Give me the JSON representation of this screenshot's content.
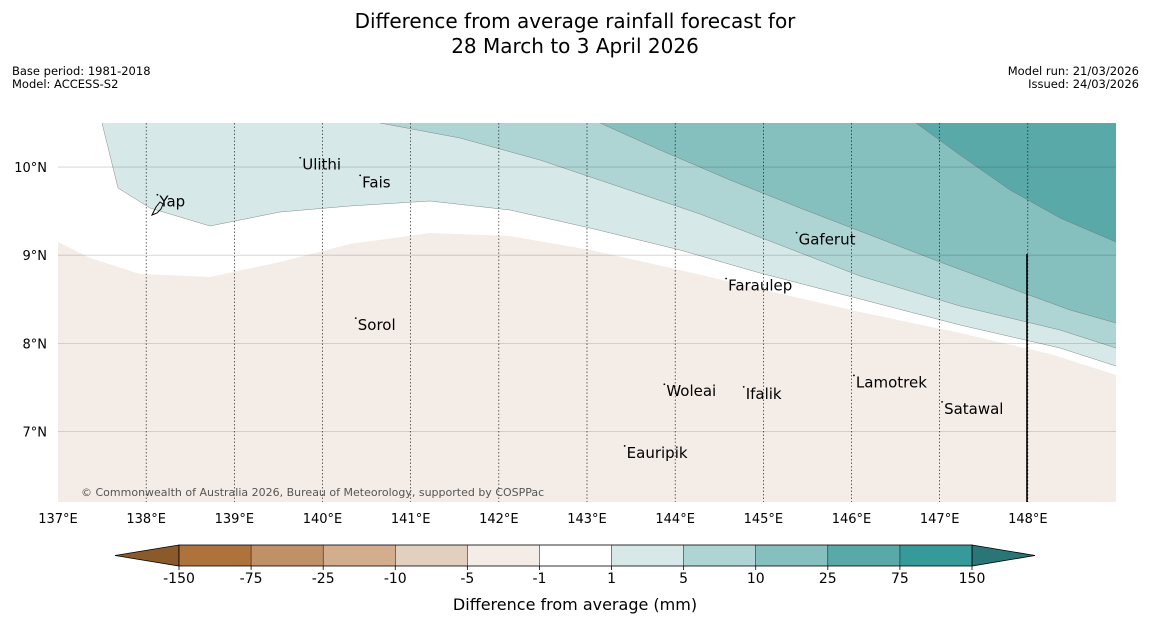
{
  "title": {
    "line1": "Difference from average rainfall forecast for",
    "line2": "28 March to 3 April 2026"
  },
  "info": {
    "base_period": "Base period: 1981-2018",
    "model": "Model: ACCESS-S2",
    "model_run": "Model run: 21/03/2026",
    "issued": "Issued: 24/03/2026"
  },
  "map": {
    "lon_range": [
      137,
      149
    ],
    "lat_range": [
      6.2,
      10.5
    ],
    "lon_ticks": [
      {
        "value": 137,
        "label": "137°E"
      },
      {
        "value": 138,
        "label": "138°E"
      },
      {
        "value": 139,
        "label": "139°E"
      },
      {
        "value": 140,
        "label": "140°E"
      },
      {
        "value": 141,
        "label": "141°E"
      },
      {
        "value": 142,
        "label": "142°E"
      },
      {
        "value": 143,
        "label": "143°E"
      },
      {
        "value": 144,
        "label": "144°E"
      },
      {
        "value": 145,
        "label": "145°E"
      },
      {
        "value": 146,
        "label": "146°E"
      },
      {
        "value": 147,
        "label": "147°E"
      },
      {
        "value": 148,
        "label": "148°E"
      }
    ],
    "lat_ticks": [
      {
        "value": 10,
        "label": "10°N"
      },
      {
        "value": 9,
        "label": "9°N"
      },
      {
        "value": 8,
        "label": "8°N"
      },
      {
        "value": 7,
        "label": "7°N"
      }
    ],
    "places": [
      {
        "name": "Ulithi",
        "lon": 139.77,
        "lat": 9.97
      },
      {
        "name": "Fais",
        "lon": 140.45,
        "lat": 9.77
      },
      {
        "name": "Yap",
        "lon": 138.15,
        "lat": 9.55
      },
      {
        "name": "Gaferut",
        "lon": 145.4,
        "lat": 9.12
      },
      {
        "name": "Faraulep",
        "lon": 144.6,
        "lat": 8.6
      },
      {
        "name": "Sorol",
        "lon": 140.4,
        "lat": 8.15
      },
      {
        "name": "Woleai",
        "lon": 143.9,
        "lat": 7.4
      },
      {
        "name": "Ifalik",
        "lon": 144.8,
        "lat": 7.37
      },
      {
        "name": "Lamotrek",
        "lon": 146.05,
        "lat": 7.5
      },
      {
        "name": "Satawal",
        "lon": 147.05,
        "lat": 7.2
      },
      {
        "name": "Eauripik",
        "lon": 143.45,
        "lat": 6.7
      }
    ],
    "credit": "© Commonwealth of Australia 2026, Bureau of Meteorology, supported by COSPPac"
  },
  "colorbar": {
    "label": "Difference from average (mm)",
    "tick_labels": [
      "-150",
      "-75",
      "-25",
      "-10",
      "-5",
      "-1",
      "1",
      "5",
      "10",
      "25",
      "75",
      "150"
    ],
    "colors": [
      "#8b5a2b",
      "#ae733c",
      "#c09166",
      "#d2ae8e",
      "#e3cfbe",
      "#f4ece7",
      "#ffffff",
      "#d6e9e8",
      "#aed5d4",
      "#85bfbe",
      "#5aa9a9",
      "#369a9a",
      "#2a7575"
    ]
  }
}
